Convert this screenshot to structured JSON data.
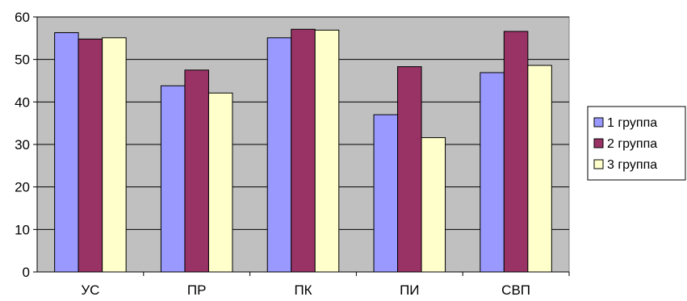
{
  "chart_data": {
    "type": "bar",
    "title": "",
    "xlabel": "",
    "ylabel": "",
    "categories": [
      "УС",
      "ПР",
      "ПК",
      "ПИ",
      "СВП"
    ],
    "series": [
      {
        "name": "1 группа",
        "color": "#9999FF",
        "values": [
          56.3,
          43.8,
          55.1,
          37.0,
          46.9
        ]
      },
      {
        "name": "2 группа",
        "color": "#993366",
        "values": [
          54.8,
          47.5,
          57.1,
          48.3,
          56.6
        ]
      },
      {
        "name": "3 группа",
        "color": "#FFFFCC",
        "values": [
          55.1,
          42.1,
          56.9,
          31.6,
          48.6
        ]
      }
    ],
    "ylim": [
      0,
      60
    ],
    "yticks": [
      0,
      10,
      20,
      30,
      40,
      50,
      60
    ],
    "grid": true,
    "plot_background": "#C0C0C0",
    "legend_position": "right"
  }
}
